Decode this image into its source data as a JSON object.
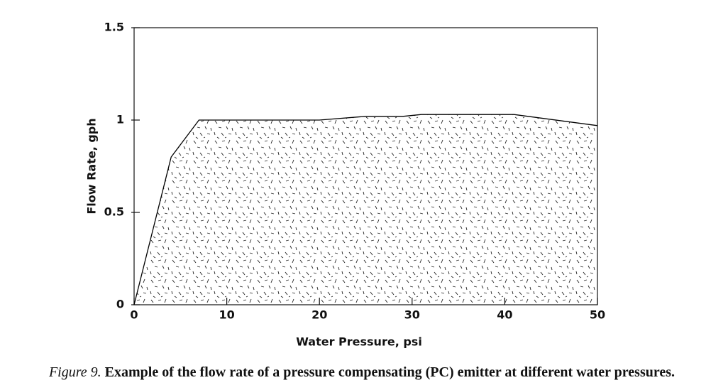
{
  "chart_data": {
    "type": "area",
    "x": [
      0,
      4,
      7,
      20,
      25,
      29,
      31,
      41,
      50
    ],
    "values": [
      0,
      0.8,
      1,
      1,
      1.02,
      1.02,
      1.03,
      1.03,
      0.97
    ],
    "color": "#000000",
    "xlim": [
      0,
      50
    ],
    "xticks": [
      0,
      10,
      20,
      30,
      40,
      50
    ],
    "ylim": [
      0,
      1.5
    ],
    "yticks": [
      0,
      0.5,
      1,
      1.5
    ],
    "xlabel": "Water Pressure, psi",
    "ylabel": "Flow Rate, gph",
    "caption_label": "Figure 9.",
    "caption": "Example of the flow rate of a pressure compensating (PC) emitter at different water pressures."
  }
}
